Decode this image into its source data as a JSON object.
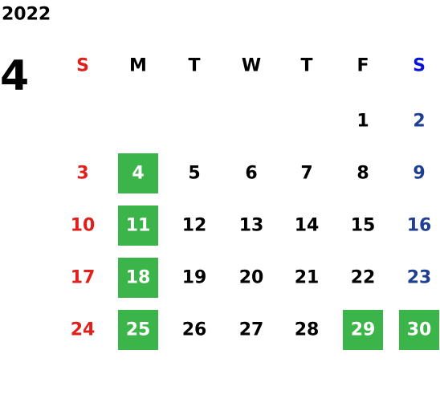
{
  "calendar": {
    "year": "2022",
    "month": "4",
    "weekdays": [
      "S",
      "M",
      "T",
      "W",
      "T",
      "F",
      "S"
    ],
    "weeks": [
      [
        null,
        null,
        null,
        null,
        null,
        {
          "day": "1"
        },
        {
          "day": "2"
        }
      ],
      [
        {
          "day": "3"
        },
        {
          "day": "4",
          "highlight": true
        },
        {
          "day": "5"
        },
        {
          "day": "6"
        },
        {
          "day": "7"
        },
        {
          "day": "8"
        },
        {
          "day": "9"
        }
      ],
      [
        {
          "day": "10"
        },
        {
          "day": "11",
          "highlight": true
        },
        {
          "day": "12"
        },
        {
          "day": "13"
        },
        {
          "day": "14"
        },
        {
          "day": "15"
        },
        {
          "day": "16"
        }
      ],
      [
        {
          "day": "17"
        },
        {
          "day": "18",
          "highlight": true
        },
        {
          "day": "19"
        },
        {
          "day": "20"
        },
        {
          "day": "21"
        },
        {
          "day": "22"
        },
        {
          "day": "23"
        }
      ],
      [
        {
          "day": "24"
        },
        {
          "day": "25",
          "highlight": true
        },
        {
          "day": "26"
        },
        {
          "day": "27"
        },
        {
          "day": "28"
        },
        {
          "day": "29",
          "highlight": true
        },
        {
          "day": "30",
          "highlight": true
        }
      ]
    ],
    "colors": {
      "sunday": "#e0201c",
      "saturday": "#1f3f93",
      "saturday_header": "#0a14d8",
      "weekday": "#000000",
      "highlight": "#3bb54a",
      "highlight_text": "#ffffff"
    }
  }
}
